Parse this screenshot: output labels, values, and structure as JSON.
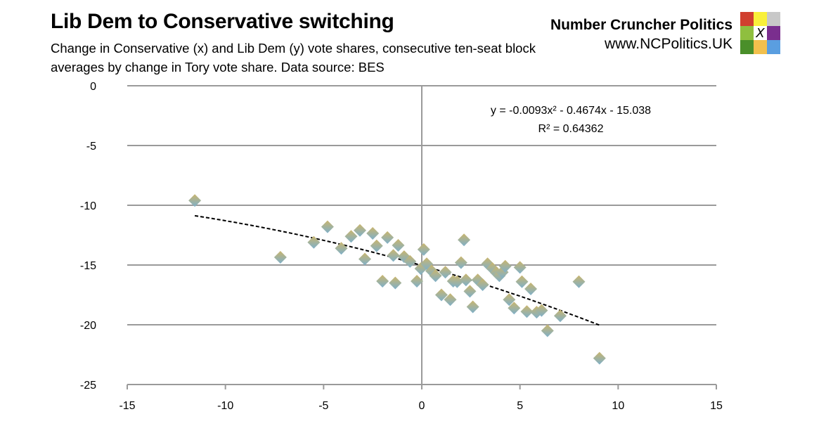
{
  "header": {
    "title": "Lib Dem to Conservative switching",
    "subtitle": "Change in Conservative (x) and Lib Dem (y) vote shares, consecutive ten-seat block averages by change in Tory vote share. Data source: BES",
    "brand_name": "Number Cruncher Politics",
    "brand_url": "www.NCPolitics.UK",
    "logo_colors": [
      "#d0402f",
      "#f9f03a",
      "#c8c8c8",
      "#8fbf3f",
      "#ffffff",
      "#7a2e8e",
      "#4a8f2a",
      "#f2c04d",
      "#5a9ee0"
    ],
    "logo_mark": "X"
  },
  "chart_data": {
    "type": "scatter",
    "title": "",
    "xlabel": "",
    "ylabel": "",
    "xlim": [
      -15,
      15
    ],
    "ylim": [
      -25,
      0
    ],
    "xticks": [
      -15,
      -10,
      -5,
      0,
      5,
      10,
      15
    ],
    "yticks": [
      0,
      -5,
      -10,
      -15,
      -20,
      -25
    ],
    "grid": "horizontal",
    "marker_color": "#a8b48c",
    "points": [
      [
        -11.56,
        -9.6
      ],
      [
        -7.2,
        -14.35
      ],
      [
        -5.5,
        -13.1
      ],
      [
        -4.8,
        -11.8
      ],
      [
        -4.1,
        -13.6
      ],
      [
        -3.6,
        -12.6
      ],
      [
        -3.15,
        -12.1
      ],
      [
        -2.9,
        -14.5
      ],
      [
        -2.5,
        -12.35
      ],
      [
        -2.3,
        -13.4
      ],
      [
        -2.0,
        -16.35
      ],
      [
        -1.75,
        -12.7
      ],
      [
        -1.45,
        -14.2
      ],
      [
        -1.35,
        -16.5
      ],
      [
        -1.2,
        -13.35
      ],
      [
        -0.9,
        -14.3
      ],
      [
        -0.6,
        -14.7
      ],
      [
        -0.25,
        -16.35
      ],
      [
        0.1,
        -13.7
      ],
      [
        -0.05,
        -15.3
      ],
      [
        0.25,
        -14.9
      ],
      [
        0.5,
        -15.5
      ],
      [
        0.7,
        -15.9
      ],
      [
        1.0,
        -17.5
      ],
      [
        1.2,
        -15.6
      ],
      [
        1.45,
        -17.9
      ],
      [
        1.6,
        -16.35
      ],
      [
        1.8,
        -16.4
      ],
      [
        2.15,
        -12.9
      ],
      [
        2.0,
        -14.8
      ],
      [
        2.25,
        -16.25
      ],
      [
        2.45,
        -17.2
      ],
      [
        2.6,
        -18.5
      ],
      [
        2.85,
        -16.25
      ],
      [
        3.1,
        -16.65
      ],
      [
        3.35,
        -14.9
      ],
      [
        3.6,
        -15.3
      ],
      [
        3.8,
        -15.65
      ],
      [
        3.95,
        -15.9
      ],
      [
        4.1,
        -15.6
      ],
      [
        4.25,
        -15.1
      ],
      [
        4.45,
        -17.9
      ],
      [
        4.7,
        -18.6
      ],
      [
        5.0,
        -15.2
      ],
      [
        5.1,
        -16.4
      ],
      [
        5.55,
        -17.0
      ],
      [
        5.35,
        -18.9
      ],
      [
        5.85,
        -18.95
      ],
      [
        6.1,
        -18.8
      ],
      [
        6.4,
        -20.5
      ],
      [
        7.05,
        -19.25
      ],
      [
        8.0,
        -16.4
      ],
      [
        9.05,
        -22.8
      ]
    ],
    "trendline": {
      "type": "polynomial",
      "coefficients": [
        -0.0093,
        -0.4674,
        -15.038
      ],
      "style": "dashed",
      "color": "#000000"
    },
    "annotations": {
      "equation": "y = -0.0093x² - 0.4674x - 15.038",
      "r_squared": "R² = 0.64362"
    }
  }
}
